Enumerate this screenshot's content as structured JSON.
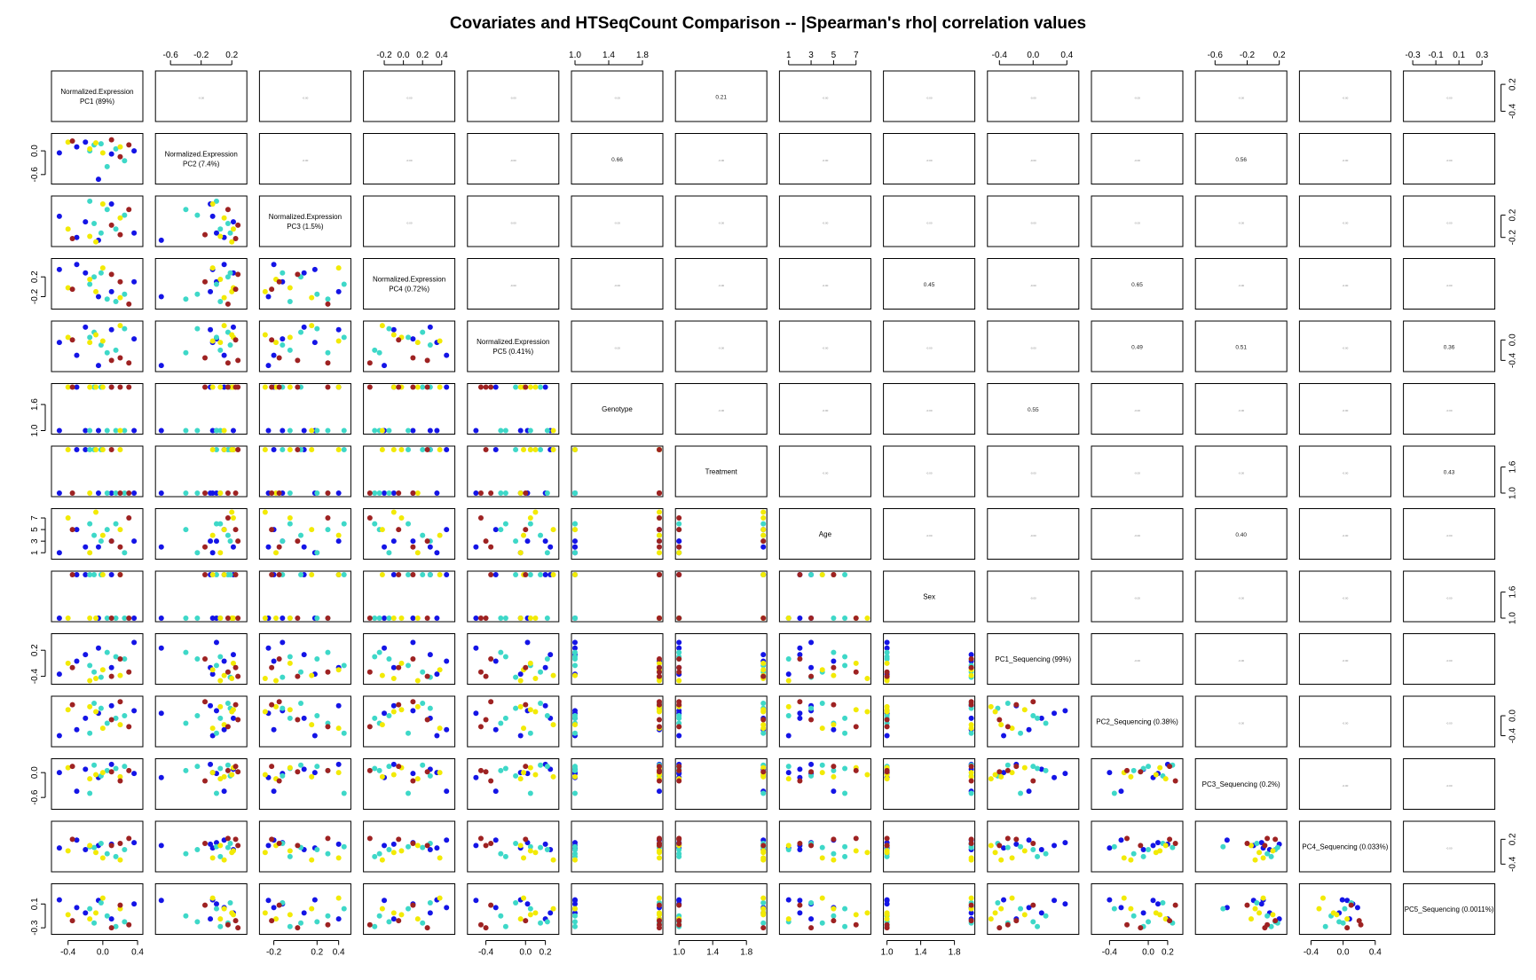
{
  "chart_data": {
    "type": "scatter",
    "subtype": "pairs-matrix",
    "title": "Covariates and HTSeqCount Comparison -- |Spearman's rho| correlation values",
    "variables": [
      "Normalized.Expression\nPC1 (89%)",
      "Normalized.Expression\nPC2 (7.4%)",
      "Normalized.Expression\nPC3 (1.5%)",
      "Normalized.Expression\nPC4 (0.72%)",
      "Normalized.Expression\nPC5 (0.41%)",
      "Genotype",
      "Treatment",
      "Age",
      "Sex",
      "PC1_Sequencing (99%)",
      "PC2_Sequencing (0.38%)",
      "PC3_Sequencing (0.2%)",
      "PC4_Sequencing (0.033%)",
      "PC5_Sequencing (0.0011%)"
    ],
    "ranges": [
      [
        -0.55,
        0.42
      ],
      [
        -0.75,
        0.35
      ],
      [
        -0.3,
        0.48
      ],
      [
        -0.38,
        0.5
      ],
      [
        -0.55,
        0.3
      ],
      [
        1.0,
        2.0
      ],
      [
        1.0,
        2.0
      ],
      [
        0.5,
        8.0
      ],
      [
        1.0,
        2.0
      ],
      [
        -0.5,
        0.5
      ],
      [
        -0.55,
        0.32
      ],
      [
        -0.8,
        0.25
      ],
      [
        -0.5,
        0.55
      ],
      [
        -0.35,
        0.38
      ]
    ],
    "axes": {
      "top": [
        {
          "col": 1,
          "ticks": [
            "-0.6",
            "-0.2",
            "0.2"
          ],
          "values": [
            -0.6,
            -0.2,
            0.2
          ]
        },
        {
          "col": 3,
          "ticks": [
            "-0.2",
            "0.0",
            "0.2",
            "0.4"
          ],
          "values": [
            -0.2,
            0.0,
            0.2,
            0.4
          ]
        },
        {
          "col": 5,
          "ticks": [
            "1.0",
            "1.4",
            "1.8"
          ],
          "values": [
            1.0,
            1.4,
            1.8
          ]
        },
        {
          "col": 7,
          "ticks": [
            "1",
            "3",
            "5",
            "7"
          ],
          "values": [
            1,
            3,
            5,
            7
          ]
        },
        {
          "col": 9,
          "ticks": [
            "-0.4",
            "0.0",
            "0.4"
          ],
          "values": [
            -0.4,
            0.0,
            0.4
          ]
        },
        {
          "col": 11,
          "ticks": [
            "-0.6",
            "-0.2",
            "0.2"
          ],
          "values": [
            -0.6,
            -0.2,
            0.2
          ]
        },
        {
          "col": 13,
          "ticks": [
            "-0.3",
            "-0.1",
            "0.1",
            "0.3"
          ],
          "values": [
            -0.3,
            -0.1,
            0.1,
            0.3
          ]
        }
      ],
      "bottom": [
        {
          "col": 0,
          "ticks": [
            "-0.4",
            "0.0",
            "0.4"
          ],
          "values": [
            -0.4,
            0.0,
            0.4
          ]
        },
        {
          "col": 2,
          "ticks": [
            "-0.2",
            "0.2",
            "0.4"
          ],
          "values": [
            -0.2,
            0.2,
            0.4
          ]
        },
        {
          "col": 4,
          "ticks": [
            "-0.4",
            "0.0",
            "0.2"
          ],
          "values": [
            -0.4,
            0.0,
            0.2
          ]
        },
        {
          "col": 6,
          "ticks": [
            "1.0",
            "1.4",
            "1.8"
          ],
          "values": [
            1.0,
            1.4,
            1.8
          ]
        },
        {
          "col": 8,
          "ticks": [
            "1.0",
            "1.4",
            "1.8"
          ],
          "values": [
            1.0,
            1.4,
            1.8
          ]
        },
        {
          "col": 10,
          "ticks": [
            "-0.4",
            "0.0",
            "0.2"
          ],
          "values": [
            -0.4,
            0.0,
            0.2
          ]
        },
        {
          "col": 12,
          "ticks": [
            "-0.4",
            "0.0",
            "0.4"
          ],
          "values": [
            -0.4,
            0.0,
            0.4
          ]
        }
      ],
      "left": [
        {
          "row": 1,
          "ticks": [
            "0.0",
            "-0.6"
          ],
          "values": [
            0.0,
            -0.6
          ]
        },
        {
          "row": 3,
          "ticks": [
            "0.2",
            "-0.2"
          ],
          "values": [
            0.2,
            -0.2
          ]
        },
        {
          "row": 5,
          "ticks": [
            "1.6",
            "1.0"
          ],
          "values": [
            1.6,
            1.0
          ]
        },
        {
          "row": 7,
          "ticks": [
            "7",
            "5",
            "3",
            "1"
          ],
          "values": [
            7,
            5,
            3,
            1
          ]
        },
        {
          "row": 9,
          "ticks": [
            "0.2",
            "-0.4"
          ],
          "values": [
            0.2,
            -0.4
          ]
        },
        {
          "row": 11,
          "ticks": [
            "0.0",
            "-0.6"
          ],
          "values": [
            0.0,
            -0.6
          ]
        },
        {
          "row": 13,
          "ticks": [
            "0.1",
            "-0.3"
          ],
          "values": [
            0.1,
            -0.3
          ]
        }
      ],
      "right": [
        {
          "row": 0,
          "ticks": [
            "0.2",
            "-0.4"
          ],
          "values": [
            0.2,
            -0.4
          ]
        },
        {
          "row": 2,
          "ticks": [
            "0.2",
            "-0.2"
          ],
          "values": [
            0.2,
            -0.2
          ]
        },
        {
          "row": 4,
          "ticks": [
            "0.0",
            "-0.4"
          ],
          "values": [
            0.0,
            -0.4
          ]
        },
        {
          "row": 6,
          "ticks": [
            "1.6",
            "1.0"
          ],
          "values": [
            1.6,
            1.0
          ]
        },
        {
          "row": 8,
          "ticks": [
            "1.6",
            "1.0"
          ],
          "values": [
            1.6,
            1.0
          ]
        },
        {
          "row": 10,
          "ticks": [
            "0.0",
            "-0.4"
          ],
          "values": [
            0.0,
            -0.4
          ]
        },
        {
          "row": 12,
          "ticks": [
            "0.2",
            "-0.4"
          ],
          "values": [
            0.2,
            -0.4
          ]
        }
      ]
    },
    "upper_panel_values": [
      {
        "row": 0,
        "col": 6,
        "label": "0.21"
      },
      {
        "row": 1,
        "col": 5,
        "label": "0.66"
      },
      {
        "row": 1,
        "col": 11,
        "label": "0.56"
      },
      {
        "row": 3,
        "col": 8,
        "label": "0.45"
      },
      {
        "row": 3,
        "col": 10,
        "label": "0.65"
      },
      {
        "row": 4,
        "col": 10,
        "label": "0.49"
      },
      {
        "row": 4,
        "col": 11,
        "label": "0.51"
      },
      {
        "row": 4,
        "col": 13,
        "label": "0.36"
      },
      {
        "row": 5,
        "col": 9,
        "label": "0.55"
      },
      {
        "row": 6,
        "col": 13,
        "label": "0.43"
      },
      {
        "row": 7,
        "col": 11,
        "label": "0.40"
      }
    ],
    "group_colors": [
      "#1414e6",
      "#3ed8c8",
      "#f2ea05",
      "#9e2222"
    ],
    "samples": [
      {
        "g": 0,
        "v": [
          -0.5,
          -0.05,
          0.18,
          0.35,
          -0.05,
          1,
          1,
          1,
          1,
          -0.35,
          -0.4,
          0.0,
          -0.01,
          0.17
        ]
      },
      {
        "g": 0,
        "v": [
          -0.05,
          -0.72,
          -0.25,
          -0.2,
          -0.5,
          1,
          1,
          2,
          1,
          0.25,
          0.05,
          -0.12,
          0.05,
          0.16
        ]
      },
      {
        "g": 0,
        "v": [
          0.36,
          0.0,
          -0.12,
          0.1,
          0.02,
          1,
          1,
          3,
          1,
          0.38,
          0.1,
          -0.02,
          0.12,
          0.1
        ]
      },
      {
        "g": 0,
        "v": [
          -0.2,
          0.22,
          0.08,
          0.28,
          0.25,
          1,
          2,
          2,
          2,
          0.1,
          -0.05,
          0.08,
          -0.05,
          -0.05
        ]
      },
      {
        "g": 0,
        "v": [
          0.1,
          -0.08,
          0.4,
          -0.1,
          0.2,
          2,
          1,
          3,
          2,
          -0.2,
          0.2,
          0.2,
          0.08,
          -0.15
        ]
      },
      {
        "g": 0,
        "v": [
          -0.3,
          0.1,
          -0.2,
          0.45,
          -0.3,
          2,
          2,
          5,
          2,
          -0.05,
          -0.28,
          -0.45,
          0.18,
          0.04
        ]
      },
      {
        "g": 1,
        "v": [
          0.15,
          0.05,
          -0.05,
          -0.3,
          -0.2,
          1,
          1,
          6,
          1,
          0.05,
          -0.05,
          0.1,
          -0.22,
          -0.28
        ]
      },
      {
        "g": 1,
        "v": [
          -0.15,
          0.0,
          0.45,
          0.05,
          0.05,
          1,
          2,
          6,
          2,
          -0.15,
          -0.35,
          -0.5,
          0.02,
          0.02
        ]
      },
      {
        "g": 1,
        "v": [
          0.25,
          -0.25,
          0.2,
          -0.15,
          0.22,
          1,
          1,
          1,
          1,
          0.0,
          0.0,
          0.15,
          -0.05,
          -0.2
        ]
      },
      {
        "g": 1,
        "v": [
          -0.02,
          0.18,
          -0.12,
          0.28,
          -0.1,
          2,
          2,
          3,
          2,
          -0.42,
          0.15,
          -0.08,
          0.1,
          0.12
        ]
      },
      {
        "g": 1,
        "v": [
          0.05,
          -0.4,
          0.3,
          -0.25,
          -0.25,
          1,
          1,
          5,
          1,
          0.15,
          -0.15,
          0.05,
          -0.15,
          -0.1
        ]
      },
      {
        "g": 1,
        "v": [
          -0.1,
          0.15,
          0.05,
          0.2,
          0.15,
          2,
          2,
          4,
          2,
          -0.3,
          0.25,
          0.18,
          0.0,
          -0.22
        ]
      },
      {
        "g": 2,
        "v": [
          -0.08,
          0.2,
          -0.28,
          -0.1,
          0.1,
          2,
          2,
          8,
          1,
          -0.45,
          0.08,
          -0.05,
          -0.12,
          -0.05
        ]
      },
      {
        "g": 2,
        "v": [
          0.2,
          0.1,
          0.15,
          -0.22,
          0.28,
          1,
          2,
          5,
          2,
          -0.38,
          -0.18,
          -0.1,
          -0.3,
          0.02
        ]
      },
      {
        "g": 2,
        "v": [
          -0.15,
          0.05,
          -0.18,
          0.15,
          -0.05,
          2,
          1,
          1,
          1,
          -0.5,
          0.18,
          -0.15,
          0.05,
          -0.15
        ]
      },
      {
        "g": 2,
        "v": [
          0.0,
          -0.05,
          0.4,
          0.38,
          -0.02,
          2,
          2,
          4,
          2,
          -0.25,
          -0.25,
          0.0,
          -0.25,
          0.2
        ]
      },
      {
        "g": 2,
        "v": [
          -0.4,
          0.22,
          -0.05,
          -0.02,
          0.05,
          2,
          2,
          7,
          1,
          -0.1,
          0.12,
          0.12,
          -0.08,
          -0.08
        ]
      },
      {
        "g": 3,
        "v": [
          0.3,
          0.15,
          0.3,
          -0.35,
          -0.45,
          2,
          1,
          7,
          1,
          -0.3,
          -0.22,
          0.05,
          0.22,
          -0.25
        ]
      },
      {
        "g": 3,
        "v": [
          -0.35,
          0.25,
          -0.22,
          -0.05,
          0.0,
          2,
          1,
          5,
          2,
          -0.2,
          0.22,
          0.15,
          0.2,
          -0.18
        ]
      },
      {
        "g": 3,
        "v": [
          0.1,
          0.28,
          0.02,
          0.25,
          -0.4,
          2,
          2,
          3,
          1,
          -0.4,
          -0.08,
          0.02,
          0.05,
          -0.3
        ]
      },
      {
        "g": 3,
        "v": [
          0.2,
          -0.15,
          -0.15,
          0.1,
          -0.35,
          2,
          1,
          2,
          2,
          0.0,
          0.28,
          -0.2,
          0.1,
          0.08
        ]
      }
    ]
  }
}
